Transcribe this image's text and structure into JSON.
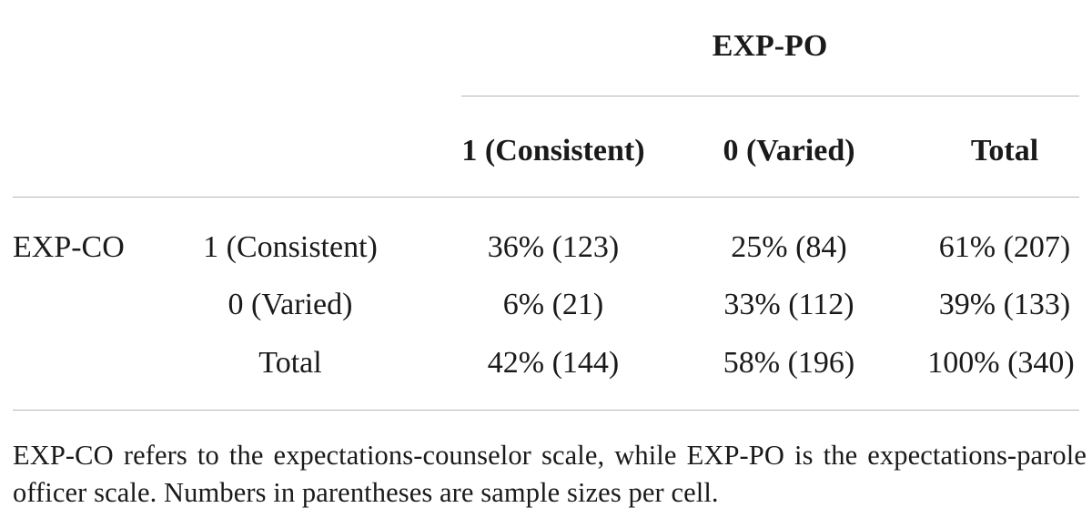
{
  "table": {
    "group_header": "EXP-PO",
    "column_headers": [
      "1 (Consistent)",
      "0 (Varied)",
      "Total"
    ],
    "row_group_label": "EXP-CO",
    "rows": [
      {
        "label": "1 (Consistent)",
        "cells": [
          "36% (123)",
          "25% (84)",
          "61% (207)"
        ]
      },
      {
        "label": "0 (Varied)",
        "cells": [
          "6% (21)",
          "33% (112)",
          "39% (133)"
        ]
      },
      {
        "label": "Total",
        "cells": [
          "42% (144)",
          "58% (196)",
          "100% (340)"
        ]
      }
    ],
    "footnote": "EXP-CO refers to the expectations-counselor scale, while EXP-PO is the expectations-parole officer scale. Numbers in parentheses are sample sizes per cell."
  }
}
